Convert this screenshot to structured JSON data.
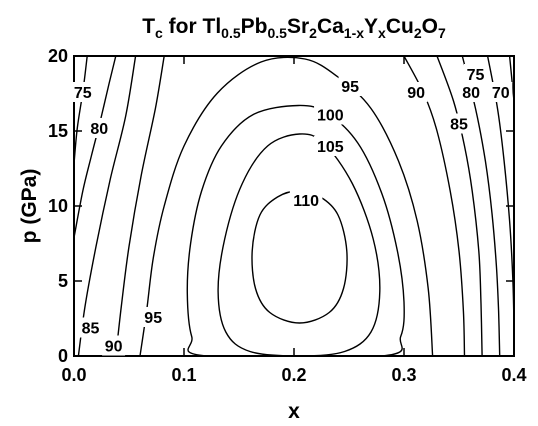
{
  "chart_data": {
    "type": "contour",
    "title": {
      "segments": [
        {
          "text": "T",
          "sub": false
        },
        {
          "text": "c",
          "sub": true
        },
        {
          "text": " for Tl",
          "sub": false
        },
        {
          "text": "0.5",
          "sub": true
        },
        {
          "text": "Pb",
          "sub": false
        },
        {
          "text": "0.5",
          "sub": true
        },
        {
          "text": "Sr",
          "sub": false
        },
        {
          "text": "2",
          "sub": true
        },
        {
          "text": "Ca",
          "sub": false
        },
        {
          "text": "1-x",
          "sub": true
        },
        {
          "text": "Y",
          "sub": false
        },
        {
          "text": "x",
          "sub": true
        },
        {
          "text": "Cu",
          "sub": false
        },
        {
          "text": "2",
          "sub": true
        },
        {
          "text": "O",
          "sub": false
        },
        {
          "text": "7",
          "sub": true
        }
      ]
    },
    "xlabel": "x",
    "ylabel": "p (GPa)",
    "xlim": [
      0.0,
      0.4
    ],
    "ylim": [
      0,
      20
    ],
    "x_ticks": [
      0.0,
      0.1,
      0.2,
      0.3,
      0.4
    ],
    "x_tick_labels": [
      "0.0",
      "0.1",
      "0.2",
      "0.3",
      "0.4"
    ],
    "y_ticks": [
      0,
      5,
      10,
      15,
      20
    ],
    "y_tick_labels": [
      "0",
      "5",
      "10",
      "15",
      "20"
    ],
    "grid": false,
    "contour_labels": [
      {
        "text": "75",
        "x": 0.008,
        "y": 17.6
      },
      {
        "text": "80",
        "x": 0.023,
        "y": 15.2
      },
      {
        "text": "85",
        "x": 0.015,
        "y": 1.9
      },
      {
        "text": "90",
        "x": 0.036,
        "y": 0.7
      },
      {
        "text": "95",
        "x": 0.072,
        "y": 2.6
      },
      {
        "text": "95",
        "x": 0.251,
        "y": 18.0
      },
      {
        "text": "100",
        "x": 0.233,
        "y": 16.1
      },
      {
        "text": "105",
        "x": 0.233,
        "y": 14.0
      },
      {
        "text": "110",
        "x": 0.211,
        "y": 10.4
      },
      {
        "text": "90",
        "x": 0.311,
        "y": 17.6
      },
      {
        "text": "75",
        "x": 0.365,
        "y": 18.8
      },
      {
        "text": "80",
        "x": 0.361,
        "y": 17.6
      },
      {
        "text": "85",
        "x": 0.35,
        "y": 15.5
      },
      {
        "text": "70",
        "x": 0.388,
        "y": 17.6
      }
    ]
  }
}
